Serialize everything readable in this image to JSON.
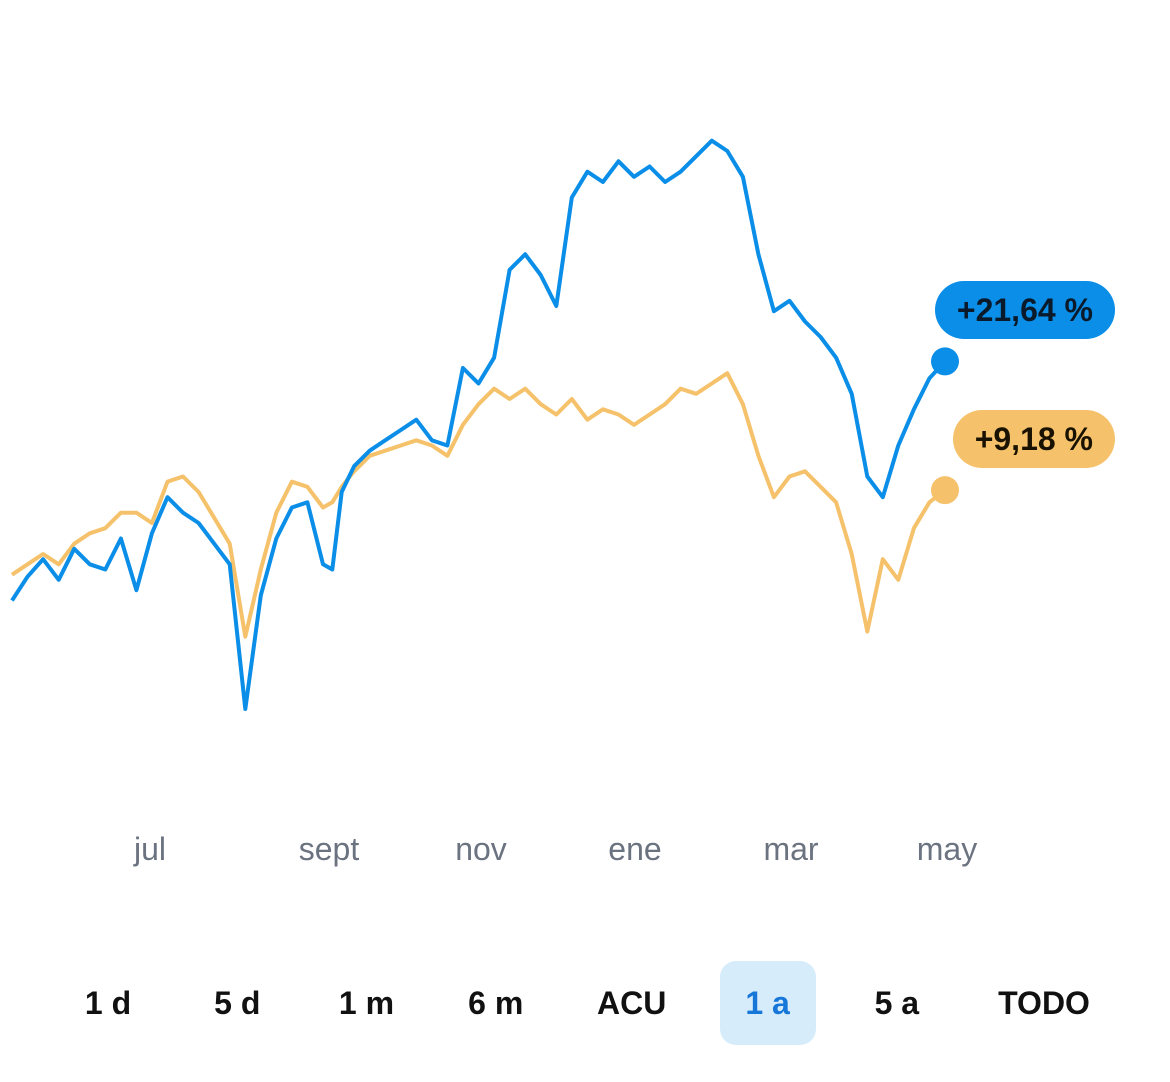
{
  "chart_data": {
    "type": "line",
    "x_ticks": [
      "jul",
      "sept",
      "nov",
      "ene",
      "mar",
      "may"
    ],
    "ylim": [
      -15,
      45
    ],
    "series": [
      {
        "color": "#0a8ee8",
        "end_label": "+21,64 %",
        "points": [
          [
            0,
            -1.5
          ],
          [
            5,
            0.8
          ],
          [
            10,
            2.5
          ],
          [
            15,
            0.5
          ],
          [
            20,
            3.5
          ],
          [
            25,
            2.0
          ],
          [
            30,
            1.5
          ],
          [
            35,
            4.5
          ],
          [
            40,
            -0.5
          ],
          [
            45,
            5.0
          ],
          [
            50,
            8.5
          ],
          [
            55,
            7.0
          ],
          [
            60,
            6.0
          ],
          [
            65,
            4.0
          ],
          [
            70,
            2.0
          ],
          [
            75,
            -12.0
          ],
          [
            80,
            -1.0
          ],
          [
            85,
            4.5
          ],
          [
            90,
            7.5
          ],
          [
            95,
            8.0
          ],
          [
            100,
            2.0
          ],
          [
            103,
            1.5
          ],
          [
            106,
            9.0
          ],
          [
            110,
            11.5
          ],
          [
            115,
            13.0
          ],
          [
            120,
            14.0
          ],
          [
            125,
            15.0
          ],
          [
            130,
            16.0
          ],
          [
            135,
            14.0
          ],
          [
            140,
            13.5
          ],
          [
            145,
            21.0
          ],
          [
            150,
            19.5
          ],
          [
            155,
            22.0
          ],
          [
            160,
            30.5
          ],
          [
            165,
            32.0
          ],
          [
            170,
            30.0
          ],
          [
            175,
            27.0
          ],
          [
            180,
            37.5
          ],
          [
            185,
            40.0
          ],
          [
            190,
            39.0
          ],
          [
            195,
            41.0
          ],
          [
            200,
            39.5
          ],
          [
            205,
            40.5
          ],
          [
            210,
            39.0
          ],
          [
            215,
            40.0
          ],
          [
            220,
            41.5
          ],
          [
            225,
            43.0
          ],
          [
            230,
            42.0
          ],
          [
            235,
            39.5
          ],
          [
            240,
            32.0
          ],
          [
            245,
            26.5
          ],
          [
            250,
            27.5
          ],
          [
            255,
            25.5
          ],
          [
            260,
            24.0
          ],
          [
            265,
            22.0
          ],
          [
            270,
            18.5
          ],
          [
            275,
            10.5
          ],
          [
            280,
            8.5
          ],
          [
            285,
            13.5
          ],
          [
            290,
            17.0
          ],
          [
            295,
            20.0
          ],
          [
            300,
            21.64
          ]
        ]
      },
      {
        "color": "#f5c26b",
        "end_label": "+9,18 %",
        "points": [
          [
            0,
            1.0
          ],
          [
            5,
            2.0
          ],
          [
            10,
            3.0
          ],
          [
            15,
            2.0
          ],
          [
            20,
            4.0
          ],
          [
            25,
            5.0
          ],
          [
            30,
            5.5
          ],
          [
            35,
            7.0
          ],
          [
            40,
            7.0
          ],
          [
            45,
            6.0
          ],
          [
            50,
            10.0
          ],
          [
            55,
            10.5
          ],
          [
            60,
            9.0
          ],
          [
            65,
            6.5
          ],
          [
            70,
            4.0
          ],
          [
            75,
            -5.0
          ],
          [
            80,
            1.5
          ],
          [
            85,
            7.0
          ],
          [
            90,
            10.0
          ],
          [
            95,
            9.5
          ],
          [
            100,
            7.5
          ],
          [
            103,
            8.0
          ],
          [
            106,
            9.5
          ],
          [
            110,
            11.0
          ],
          [
            115,
            12.5
          ],
          [
            120,
            13.0
          ],
          [
            125,
            13.5
          ],
          [
            130,
            14.0
          ],
          [
            135,
            13.5
          ],
          [
            140,
            12.5
          ],
          [
            145,
            15.5
          ],
          [
            150,
            17.5
          ],
          [
            155,
            19.0
          ],
          [
            160,
            18.0
          ],
          [
            165,
            19.0
          ],
          [
            170,
            17.5
          ],
          [
            175,
            16.5
          ],
          [
            180,
            18.0
          ],
          [
            185,
            16.0
          ],
          [
            190,
            17.0
          ],
          [
            195,
            16.5
          ],
          [
            200,
            15.5
          ],
          [
            205,
            16.5
          ],
          [
            210,
            17.5
          ],
          [
            215,
            19.0
          ],
          [
            220,
            18.5
          ],
          [
            225,
            19.5
          ],
          [
            230,
            20.5
          ],
          [
            235,
            17.5
          ],
          [
            240,
            12.5
          ],
          [
            245,
            8.5
          ],
          [
            250,
            10.5
          ],
          [
            255,
            11.0
          ],
          [
            260,
            9.5
          ],
          [
            265,
            8.0
          ],
          [
            270,
            3.0
          ],
          [
            275,
            -4.5
          ],
          [
            280,
            2.5
          ],
          [
            285,
            0.5
          ],
          [
            290,
            5.5
          ],
          [
            295,
            8.0
          ],
          [
            300,
            9.18
          ]
        ]
      }
    ]
  },
  "range_buttons": [
    {
      "label": "1 d",
      "active": false
    },
    {
      "label": "5 d",
      "active": false
    },
    {
      "label": "1 m",
      "active": false
    },
    {
      "label": "6 m",
      "active": false
    },
    {
      "label": "ACU",
      "active": false
    },
    {
      "label": "1 a",
      "active": true
    },
    {
      "label": "5 a",
      "active": false
    },
    {
      "label": "TODO",
      "active": false
    }
  ]
}
